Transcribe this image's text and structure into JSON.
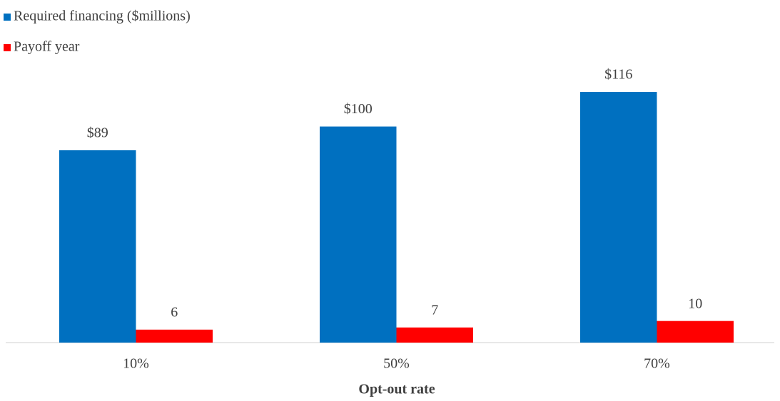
{
  "chart_data": {
    "type": "bar",
    "x_label": "Opt-out rate",
    "categories": [
      "10%",
      "50%",
      "70%"
    ],
    "series": [
      {
        "name": "Required financing ($millions)",
        "color": "#0070c0",
        "values": [
          89,
          100,
          116
        ],
        "value_labels": [
          "$89",
          "$100",
          "$116"
        ]
      },
      {
        "name": "Payoff year",
        "color": "#ff0000",
        "values": [
          6,
          7,
          10
        ]
      }
    ]
  }
}
